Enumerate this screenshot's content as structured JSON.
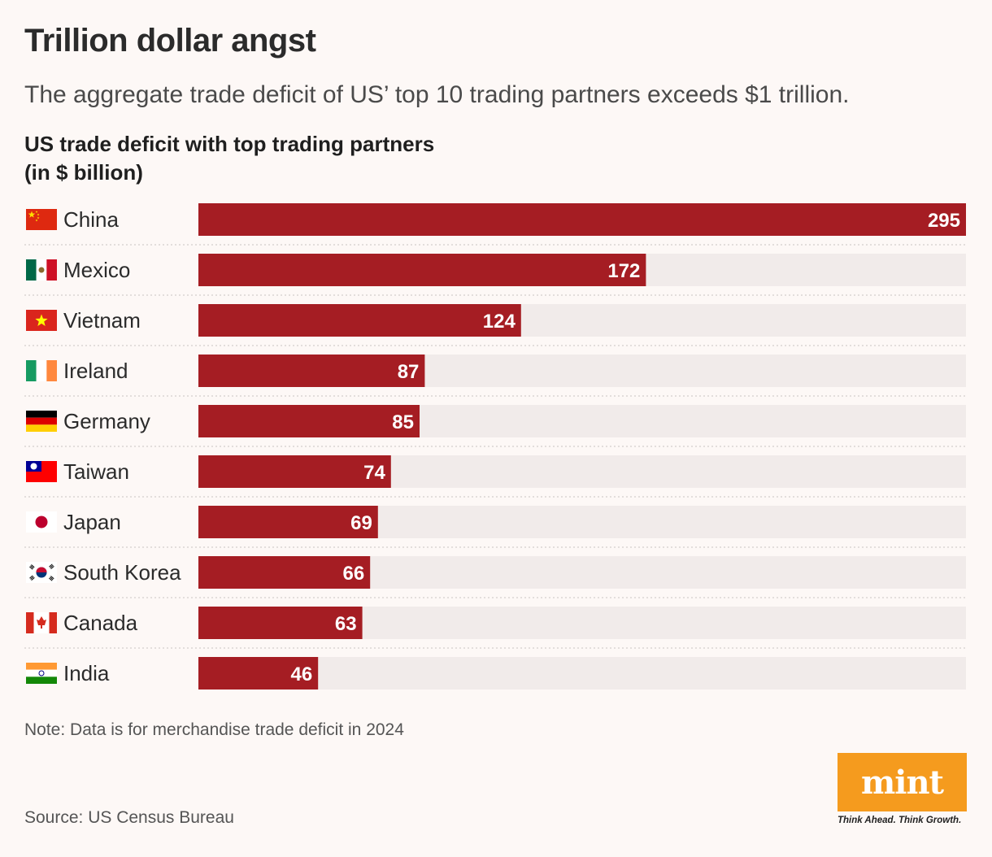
{
  "header": {
    "title": "Trillion dollar angst",
    "subtitle": "The aggregate trade deficit of US’ top 10 trading partners exceeds $1 trillion.",
    "chart_title_line1": "US trade deficit with top trading partners",
    "chart_title_line2": "(in $ billion)"
  },
  "colors": {
    "bar": "#a51d23",
    "track": "#f1ebea",
    "background": "#fdf8f6",
    "label": "#2b2b2b",
    "value": "#ffffff",
    "logo": "#f59b1e"
  },
  "chart_data": {
    "type": "bar",
    "orientation": "horizontal",
    "title": "US trade deficit with top trading partners (in $ billion)",
    "categories": [
      "China",
      "Mexico",
      "Vietnam",
      "Ireland",
      "Germany",
      "Taiwan",
      "Japan",
      "South Korea",
      "Canada",
      "India"
    ],
    "flags": [
      "china-flag-icon",
      "mexico-flag-icon",
      "vietnam-flag-icon",
      "ireland-flag-icon",
      "germany-flag-icon",
      "taiwan-flag-icon",
      "japan-flag-icon",
      "south-korea-flag-icon",
      "canada-flag-icon",
      "india-flag-icon"
    ],
    "values": [
      295,
      172,
      124,
      87,
      85,
      74,
      69,
      66,
      63,
      46
    ],
    "xlim": [
      0,
      295
    ],
    "xlabel": "",
    "ylabel": "",
    "grid": false,
    "legend": "none"
  },
  "footer": {
    "note": "Note: Data is for merchandise trade deficit in 2024",
    "source": "Source: US Census Bureau",
    "logo": "mint",
    "tagline": "Think Ahead. Think Growth."
  }
}
